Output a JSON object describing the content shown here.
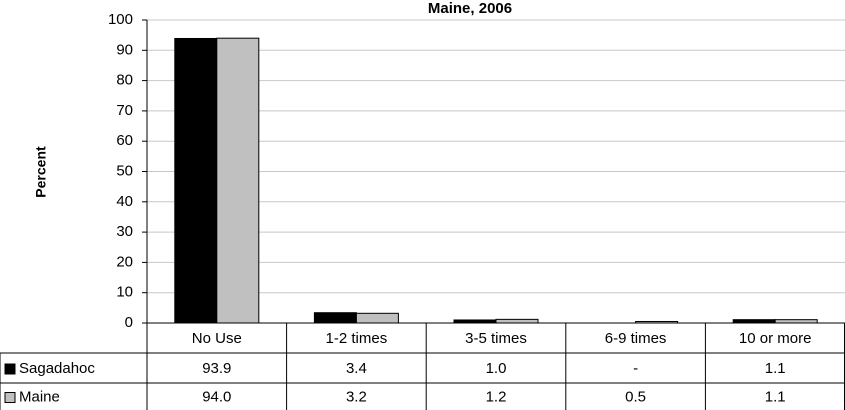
{
  "chart_data": {
    "type": "bar",
    "title": "Maine, 2006",
    "y_label": "Percent",
    "categories": [
      "No Use",
      "1-2 times",
      "3-5 times",
      "6-9 times",
      "10 or more"
    ],
    "series": [
      {
        "name": "Sagadahoc",
        "color": "#000000",
        "values": [
          93.9,
          3.4,
          1.0,
          null,
          1.1
        ],
        "value_labels": [
          "93.9",
          "3.4",
          "1.0",
          "-",
          "1.1"
        ]
      },
      {
        "name": "Maine",
        "color": "#c0c0c0",
        "values": [
          94.0,
          3.2,
          1.2,
          0.5,
          1.1
        ],
        "value_labels": [
          "94.0",
          "3.2",
          "1.2",
          "0.5",
          "1.1"
        ]
      }
    ],
    "ylim": [
      0,
      100
    ],
    "yticks": [
      0,
      10,
      20,
      30,
      40,
      50,
      60,
      70,
      80,
      90,
      100
    ],
    "grid": true
  }
}
